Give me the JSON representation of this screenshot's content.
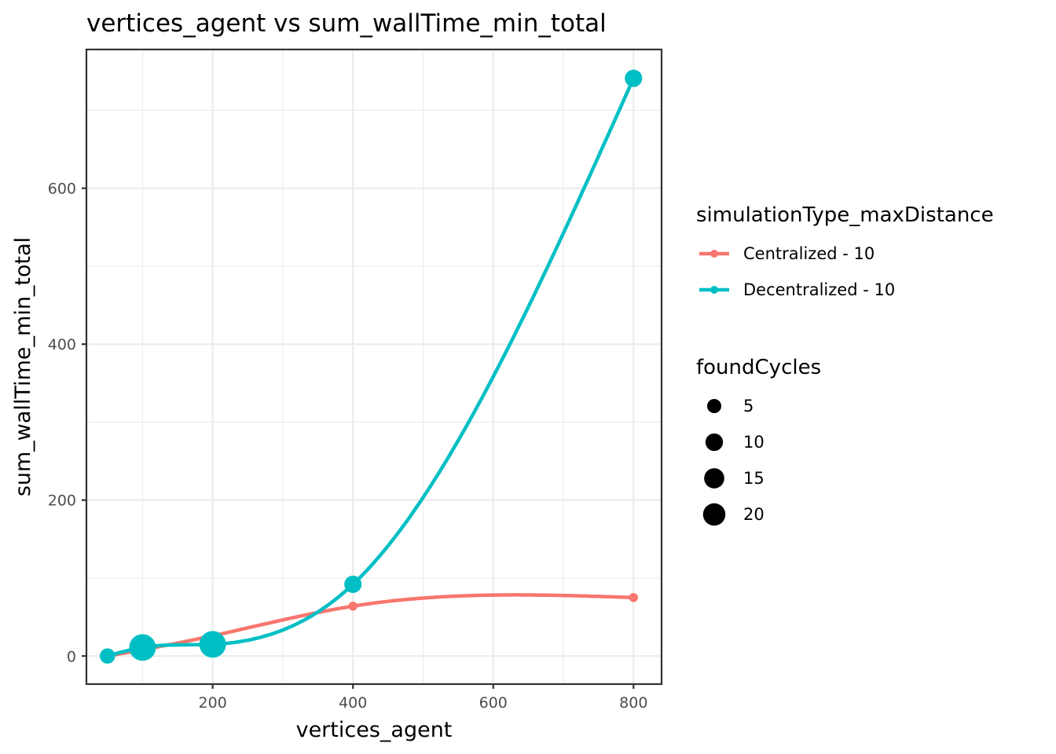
{
  "chart_data": {
    "type": "line",
    "title": "vertices_agent  vs  sum_wallTime_min_total",
    "xlabel": "vertices_agent",
    "ylabel": "sum_wallTime_min_total",
    "xlim": [
      20,
      840
    ],
    "ylim": [
      -36,
      778
    ],
    "x_ticks": [
      200,
      400,
      600,
      800
    ],
    "x_tick_labels": [
      "200",
      "400",
      "600",
      "800"
    ],
    "y_ticks": [
      0,
      200,
      400,
      600
    ],
    "y_tick_labels": [
      "0",
      "200",
      "400",
      "600"
    ],
    "grid": true,
    "series": [
      {
        "name": "Centralized - 10",
        "color": "#F8766D",
        "x": [
          50,
          100,
          200,
          400,
          800
        ],
        "y": [
          0,
          8,
          26,
          64,
          75
        ],
        "foundCycles": [
          1,
          1,
          1,
          1,
          1
        ]
      },
      {
        "name": "Decentralized - 10",
        "color": "#00BFC4",
        "x": [
          50,
          100,
          200,
          400,
          800
        ],
        "y": [
          0,
          11,
          15,
          92,
          741
        ],
        "foundCycles": [
          5,
          20,
          20,
          7,
          7
        ]
      }
    ],
    "legend": {
      "placement": "right",
      "color_title": "simulationType_maxDistance",
      "size_title": "foundCycles",
      "size_labels": [
        "5",
        "10",
        "15",
        "20"
      ],
      "size_values": [
        5,
        10,
        15,
        20
      ]
    }
  }
}
